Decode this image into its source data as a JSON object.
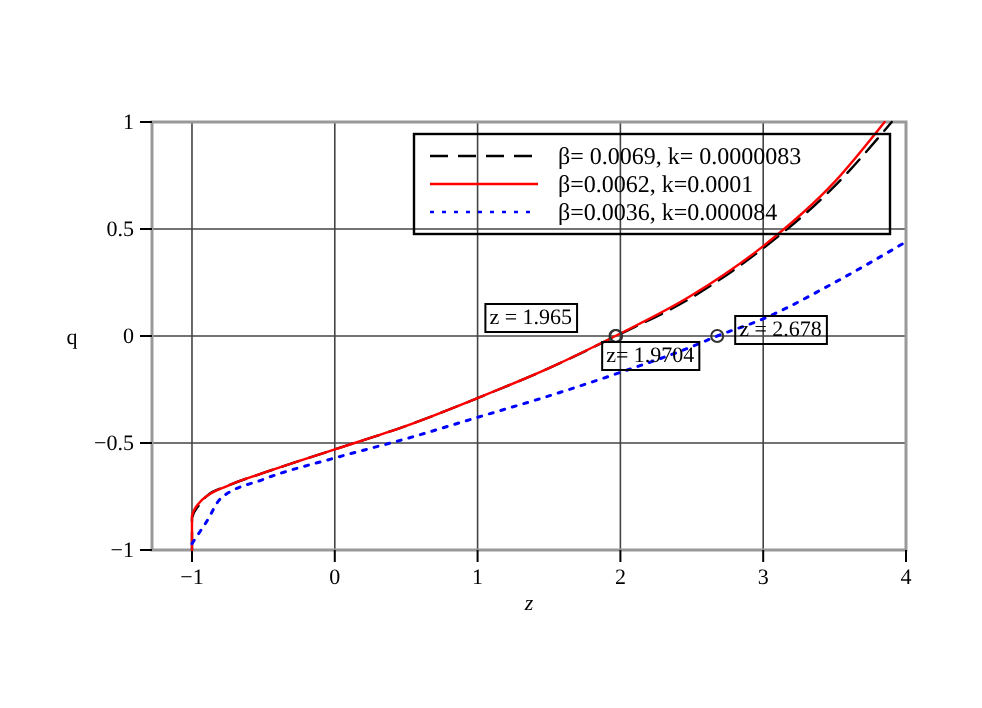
{
  "chart_data": {
    "type": "line",
    "xlabel": "z",
    "ylabel": "q",
    "xlim": [
      -1.28,
      4
    ],
    "ylim": [
      -1,
      1
    ],
    "xticks": [
      {
        "value": -1,
        "label": "−1"
      },
      0,
      1,
      2,
      3,
      4
    ],
    "yticks": [
      {
        "value": -1,
        "label": "−1"
      },
      {
        "value": -0.5,
        "label": "−0.5"
      },
      0,
      0.5,
      1
    ],
    "grid": true,
    "legend": "top right",
    "series": [
      {
        "name": "β= 0.0069, k= 0.0000083",
        "color": "#000000",
        "line_style": "dashed",
        "x": [
          -1,
          -1,
          -0.95,
          -0.9,
          -0.75,
          -0.5,
          0,
          0.5,
          1,
          1.5,
          1.97,
          2.5,
          3,
          3.5,
          3.9
        ],
        "values": [
          -1,
          -0.85,
          -0.79,
          -0.75,
          -0.7,
          -0.64,
          -0.53,
          -0.42,
          -0.29,
          -0.15,
          0,
          0.18,
          0.41,
          0.7,
          1
        ]
      },
      {
        "name": "β=0.0062, k=0.0001",
        "color": "#ff0000",
        "line_style": "solid",
        "x": [
          -1,
          -1,
          -0.95,
          -0.9,
          -0.75,
          -0.5,
          0,
          0.5,
          1,
          1.5,
          1.965,
          2.5,
          3,
          3.5,
          3.85
        ],
        "values": [
          -1,
          -0.84,
          -0.78,
          -0.75,
          -0.7,
          -0.64,
          -0.53,
          -0.42,
          -0.29,
          -0.15,
          0,
          0.19,
          0.42,
          0.72,
          1
        ]
      },
      {
        "name": "β=0.0036, k=0.000084",
        "color": "#0000ff",
        "line_style": "dotted",
        "x": [
          -1,
          -0.95,
          -0.9,
          -0.8,
          -0.5,
          0,
          0.5,
          1,
          1.5,
          2,
          2.5,
          2.678,
          3,
          3.5,
          4
        ],
        "values": [
          -0.97,
          -0.92,
          -0.87,
          -0.76,
          -0.67,
          -0.57,
          -0.48,
          -0.38,
          -0.28,
          -0.17,
          -0.05,
          0,
          0.08,
          0.25,
          0.44
        ]
      }
    ],
    "annotations": [
      {
        "text": "z = 1.965",
        "x": 1.965,
        "y": 0
      },
      {
        "text": "z= 1.9704",
        "x": 1.9704,
        "y": 0
      },
      {
        "text": "z = 2.678",
        "x": 2.678,
        "y": 0
      }
    ]
  }
}
